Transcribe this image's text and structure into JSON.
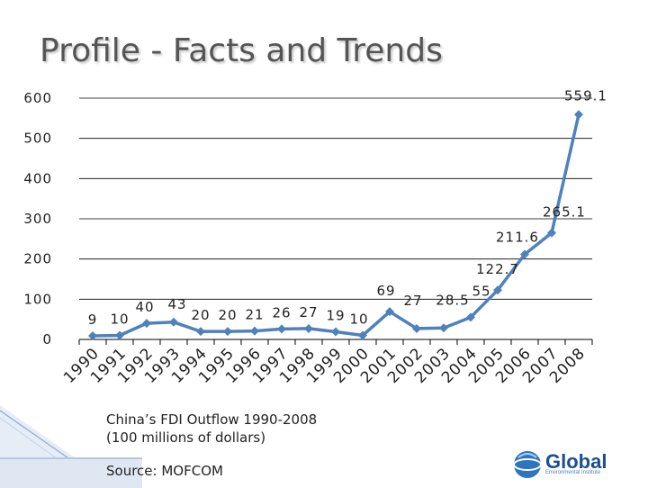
{
  "slide": {
    "title": "Profile - Facts and Trends",
    "caption_line1": "China’s FDI Outflow 1990-2008",
    "caption_line2": "(100 millions of dollars)",
    "source": "Source: MOFCOM",
    "logo_text": "Global",
    "logo_subtext": "Environmental Institute"
  },
  "colors": {
    "line": "#4f81bd",
    "gridline": "#000000",
    "title": "#555555",
    "logo": "#1d4e8e"
  },
  "chart_data": {
    "type": "line",
    "title": "",
    "xlabel": "",
    "ylabel": "",
    "ylim": [
      0,
      600
    ],
    "yticks": [
      0,
      100,
      200,
      300,
      400,
      500,
      600
    ],
    "grid": true,
    "categories": [
      "1990",
      "1991",
      "1992",
      "1993",
      "1994",
      "1995",
      "1996",
      "1997",
      "1998",
      "1999",
      "2000",
      "2001",
      "2002",
      "2003",
      "2004",
      "2005",
      "2006",
      "2007",
      "2008"
    ],
    "values": [
      9,
      10,
      40,
      43,
      20,
      20,
      21,
      26,
      27,
      19,
      10,
      69,
      27,
      28.5,
      55,
      122.7,
      211.6,
      265.1,
      559.1
    ],
    "data_labels": [
      "9",
      "10",
      "40",
      "43",
      "20",
      "20",
      "21",
      "26",
      "27",
      "19",
      "10",
      "69",
      "27",
      "28.5",
      "55",
      "122.7",
      "211.6",
      "265.1",
      "559.1"
    ]
  }
}
